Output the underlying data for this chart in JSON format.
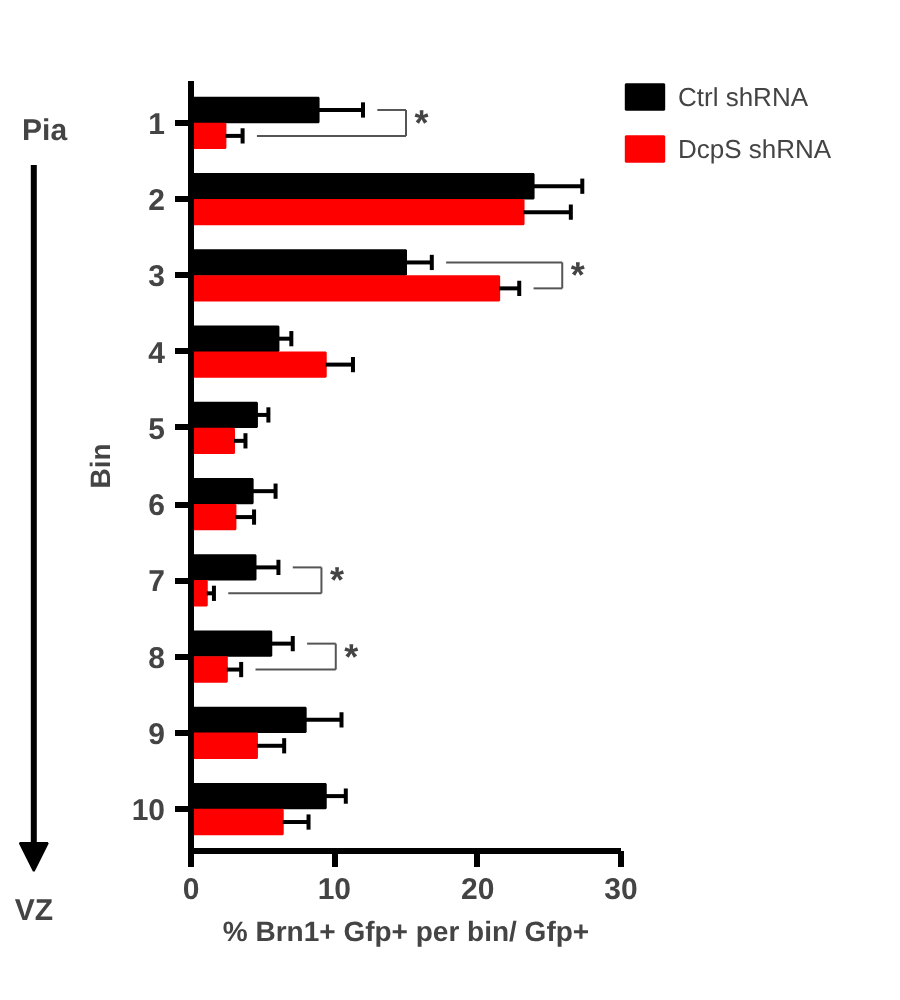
{
  "chart_data": {
    "type": "bar",
    "orientation": "horizontal",
    "xlabel": "% Brn1+ Gfp+ per bin/ Gfp+",
    "ylabel": "Bin",
    "categories": [
      "1",
      "2",
      "3",
      "4",
      "5",
      "6",
      "7",
      "8",
      "9",
      "10"
    ],
    "series": [
      {
        "name": "Ctrl shRNA",
        "color": "#000000",
        "values": [
          8.9,
          23.9,
          15.0,
          6.1,
          4.6,
          4.3,
          4.5,
          5.6,
          8.0,
          9.4
        ],
        "errors": [
          [
            8.9,
            12.0
          ],
          [
            23.9,
            27.3
          ],
          [
            15.0,
            16.8
          ],
          [
            6.1,
            7.0
          ],
          [
            4.6,
            5.4
          ],
          [
            4.3,
            5.9
          ],
          [
            4.5,
            6.1
          ],
          [
            5.6,
            7.1
          ],
          [
            8.0,
            10.5
          ],
          [
            9.4,
            10.8
          ]
        ]
      },
      {
        "name": "DcpS shRNA",
        "color": "#ff0000",
        "values": [
          2.4,
          23.2,
          21.5,
          9.4,
          3.0,
          3.1,
          1.1,
          2.5,
          4.6,
          6.4
        ],
        "errors": [
          [
            2.4,
            3.6
          ],
          [
            23.2,
            26.5
          ],
          [
            21.5,
            22.9
          ],
          [
            9.4,
            11.3
          ],
          [
            3.0,
            3.8
          ],
          [
            3.1,
            4.4
          ],
          [
            1.1,
            1.6
          ],
          [
            2.5,
            3.5
          ],
          [
            4.6,
            6.5
          ],
          [
            6.4,
            8.2
          ]
        ]
      }
    ],
    "xlim": [
      0,
      30
    ],
    "xticks": [
      0,
      10,
      20,
      30
    ],
    "grid": false,
    "legend": "top right",
    "annotations": [
      "Pia",
      "VZ",
      "*",
      "*",
      "*",
      "*"
    ]
  }
}
